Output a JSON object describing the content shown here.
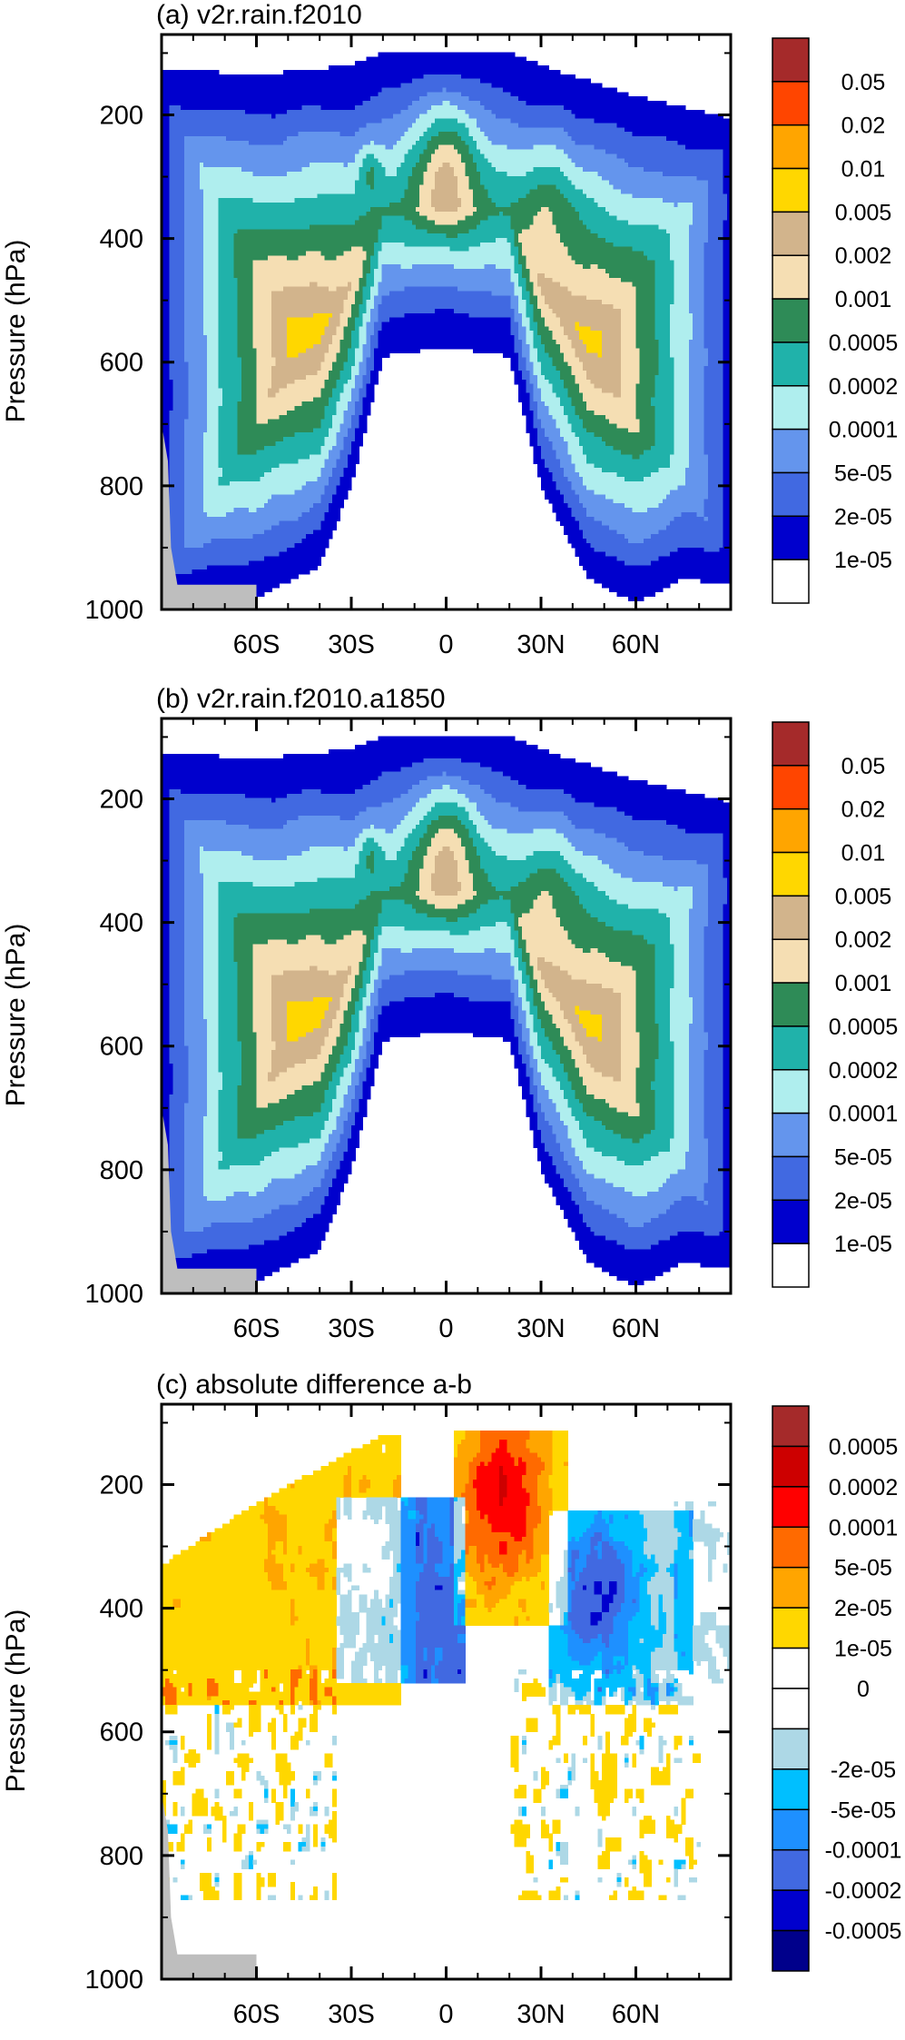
{
  "figure": {
    "ylabel": "Pressure (hPa)",
    "xticks": [
      "60S",
      "30S",
      "0",
      "30N",
      "60N"
    ],
    "yticks": [
      "200",
      "400",
      "600",
      "800",
      "1000"
    ],
    "land_color": "#bebebe"
  },
  "chart_data": [
    {
      "type": "heatmap",
      "title": "(a) v2r.rain.f2010",
      "xlabel": "",
      "ylabel": "Pressure (hPa)",
      "xlim": [
        -90,
        90
      ],
      "ylim": [
        1000,
        70
      ],
      "x_ticks": [
        "60S",
        "30S",
        "0",
        "30N",
        "60N"
      ],
      "y_ticks": [
        200,
        400,
        600,
        800,
        1000
      ],
      "colorbar": {
        "labels": [
          "0.05",
          "0.02",
          "0.01",
          "0.005",
          "0.002",
          "0.001",
          "0.0005",
          "0.0002",
          "0.0001",
          "5e-05",
          "2e-05",
          "1e-05"
        ],
        "colors": [
          "#a52a2a",
          "#ff4500",
          "#ffa500",
          "#ffd700",
          "#d2b48c",
          "#f5deb3",
          "#2e8b57",
          "#20b2aa",
          "#afeeee",
          "#6495ed",
          "#4169e1",
          "#0000cd",
          "#ffffff"
        ]
      },
      "field": {
        "top_pressure": [
          [
            -90,
            125
          ],
          [
            -60,
            135
          ],
          [
            -30,
            120
          ],
          [
            -20,
            100
          ],
          [
            20,
            100
          ],
          [
            30,
            120
          ],
          [
            60,
            170
          ],
          [
            90,
            205
          ]
        ],
        "bottom_pressure": [
          [
            -90,
            1000
          ],
          [
            -60,
            980
          ],
          [
            -40,
            930
          ],
          [
            -30,
            800
          ],
          [
            -20,
            590
          ],
          [
            0,
            575
          ],
          [
            20,
            590
          ],
          [
            30,
            800
          ],
          [
            45,
            950
          ],
          [
            60,
            990
          ],
          [
            75,
            950
          ],
          [
            90,
            960
          ]
        ],
        "core_center": [
          0,
          280
        ]
      }
    },
    {
      "type": "heatmap",
      "title": "(b) v2r.rain.f2010.a1850",
      "xlabel": "",
      "ylabel": "Pressure (hPa)",
      "xlim": [
        -90,
        90
      ],
      "ylim": [
        1000,
        70
      ],
      "x_ticks": [
        "60S",
        "30S",
        "0",
        "30N",
        "60N"
      ],
      "y_ticks": [
        200,
        400,
        600,
        800,
        1000
      ],
      "colorbar": {
        "labels": [
          "0.05",
          "0.02",
          "0.01",
          "0.005",
          "0.002",
          "0.001",
          "0.0005",
          "0.0002",
          "0.0001",
          "5e-05",
          "2e-05",
          "1e-05"
        ],
        "colors": [
          "#a52a2a",
          "#ff4500",
          "#ffa500",
          "#ffd700",
          "#d2b48c",
          "#f5deb3",
          "#2e8b57",
          "#20b2aa",
          "#afeeee",
          "#6495ed",
          "#4169e1",
          "#0000cd",
          "#ffffff"
        ]
      },
      "field": {
        "top_pressure": [
          [
            -90,
            125
          ],
          [
            -60,
            135
          ],
          [
            -30,
            120
          ],
          [
            -20,
            100
          ],
          [
            20,
            100
          ],
          [
            30,
            120
          ],
          [
            60,
            170
          ],
          [
            90,
            205
          ]
        ],
        "bottom_pressure": [
          [
            -90,
            1000
          ],
          [
            -60,
            980
          ],
          [
            -40,
            930
          ],
          [
            -30,
            800
          ],
          [
            -20,
            590
          ],
          [
            0,
            575
          ],
          [
            20,
            590
          ],
          [
            30,
            800
          ],
          [
            45,
            950
          ],
          [
            60,
            990
          ],
          [
            75,
            950
          ],
          [
            90,
            960
          ]
        ],
        "core_center": [
          0,
          280
        ]
      }
    },
    {
      "type": "heatmap",
      "title": "(c) absolute difference a-b",
      "xlabel": "",
      "ylabel": "Pressure (hPa)",
      "xlim": [
        -90,
        90
      ],
      "ylim": [
        1000,
        70
      ],
      "x_ticks": [
        "60S",
        "30S",
        "0",
        "30N",
        "60N"
      ],
      "y_ticks": [
        200,
        400,
        600,
        800,
        1000
      ],
      "colorbar": {
        "labels": [
          "0.0005",
          "0.0002",
          "0.0001",
          "5e-05",
          "2e-05",
          "1e-05",
          "0",
          "-2e-05",
          "-5e-05",
          "-0.0001",
          "-0.0002",
          "-0.0005"
        ],
        "colors": [
          "#a52a2a",
          "#cd0000",
          "#ff0000",
          "#ff6a00",
          "#ffa500",
          "#ffd700",
          "#ffffff",
          "#ffffff",
          "#add8e6",
          "#00bfff",
          "#1e90ff",
          "#4169e1",
          "#0000cd",
          "#00008b"
        ]
      },
      "features": [
        {
          "sign": "positive",
          "lat": [
            -90,
            -20
          ],
          "p": [
            150,
            550
          ],
          "peak": 2e-05
        },
        {
          "sign": "positive",
          "lat": [
            5,
            35
          ],
          "p": [
            110,
            420
          ],
          "peak": 0.0002
        },
        {
          "sign": "negative",
          "lat": [
            -30,
            5
          ],
          "p": [
            220,
            480
          ],
          "peak": -0.0002
        },
        {
          "sign": "negative",
          "lat": [
            35,
            75
          ],
          "p": [
            250,
            550
          ],
          "peak": -0.0002
        }
      ]
    }
  ]
}
